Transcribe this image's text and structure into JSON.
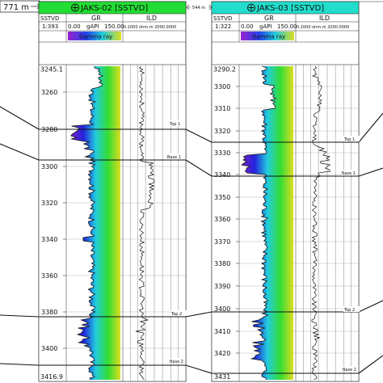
{
  "left_gap": "771 m",
  "mid_gap": "544 m",
  "wells": [
    {
      "title": "JAKS-02 [SSTVD]",
      "header_color": "#22dd33",
      "depth_col": "SSTVD",
      "scale": "1:393",
      "gr": {
        "name": "GR",
        "min": "0.00",
        "unit": "gAPI",
        "max": "150.00",
        "legend": "Gamma ray"
      },
      "ild": {
        "name": "ILD",
        "range": "0.2000 ohm.m 2000.0000"
      },
      "top_depth": "3245.1",
      "bottom_depth": "3416.9",
      "ticks": [
        "3260",
        "3280",
        "3300",
        "3320",
        "3340",
        "3360",
        "3380",
        "3400"
      ],
      "markers": [
        "Top 1",
        "Base 1",
        "Top 2",
        "Base 2"
      ]
    },
    {
      "title": "JAKS-03 [SSTVD]",
      "header_color": "#22ddcc",
      "depth_col": "SSTVD",
      "scale": "1:322",
      "gr": {
        "name": "GR",
        "min": "0.00",
        "unit": "gAPI",
        "max": "150.00",
        "legend": "Gamma ray"
      },
      "ild": {
        "name": "ILD",
        "range": "0.2000 ohm.m 2000.0000"
      },
      "top_depth": "3290.2",
      "bottom_depth": "3431",
      "ticks": [
        "3300",
        "3310",
        "3320",
        "3330",
        "3340",
        "3350",
        "3360",
        "3370",
        "3380",
        "3390",
        "3400",
        "3410",
        "3420"
      ],
      "markers": [
        "Top 1",
        "Base 1",
        "Top 2",
        "Base 2"
      ]
    }
  ],
  "colors": {
    "panel_border": "#333333",
    "fill_green": "#33cc44",
    "fill_cyan": "#33cccc",
    "fill_blue": "#2233cc"
  }
}
